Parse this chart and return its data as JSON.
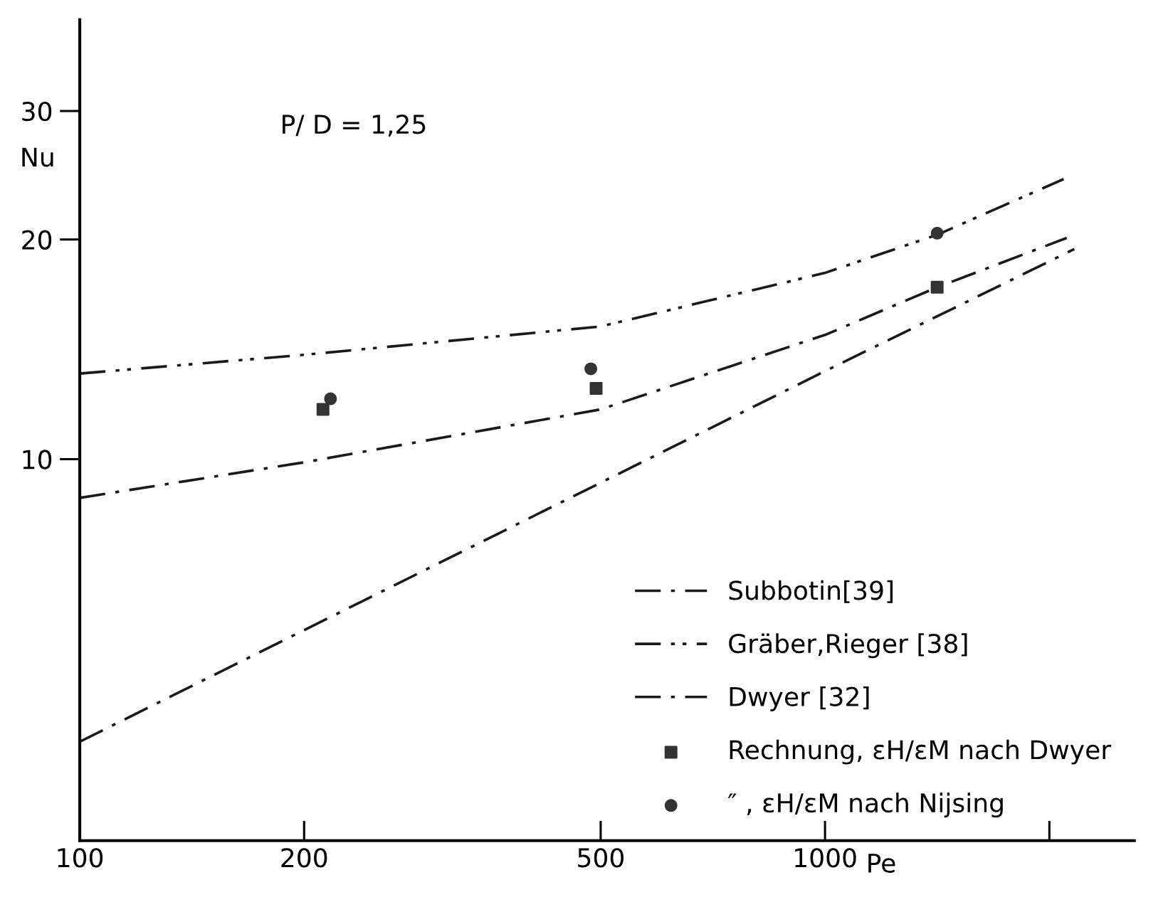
{
  "chart_data": {
    "type": "line",
    "xlabel": "Pe",
    "ylabel": "Nu",
    "log": "xy",
    "xlim": [
      100,
      2600
    ],
    "ylim": [
      3,
      40
    ],
    "xticks": [
      100,
      200,
      500,
      1000,
      {
        "value": 2000,
        "label": null
      }
    ],
    "yticks": [
      10,
      20,
      30
    ],
    "grid": false,
    "legend": "bottom right",
    "annotations": [
      "P/ D = 1,25"
    ],
    "series": [
      {
        "name": "Subbotin[39]",
        "line_style": "dashdot",
        "color": "#1a1a1a",
        "x": [
          100,
          200,
          500,
          1000,
          1414,
          2110
        ],
        "values": [
          8.85,
          9.9,
          11.7,
          14.8,
          17.2,
          20.1
        ]
      },
      {
        "name": "Gräber,Rieger [38]",
        "line_style": "dashdotdot",
        "color": "#1a1a1a",
        "x": [
          100,
          200,
          500,
          700,
          1000,
          1414,
          2090
        ],
        "values": [
          13.1,
          13.9,
          15.2,
          16.5,
          18.0,
          20.3,
          24.2
        ]
      },
      {
        "name": "Dwyer [32]",
        "line_style": "dashdot",
        "color": "#1a1a1a",
        "x": [
          100,
          1000,
          2160
        ],
        "values": [
          4.1,
          13.2,
          19.4
        ]
      },
      {
        "name": "Rechnung, εH/εM nach Dwyer",
        "type": "scatter",
        "marker": "square",
        "color": "#333333",
        "x": [
          212,
          493,
          1414
        ],
        "values": [
          11.7,
          12.5,
          17.2
        ]
      },
      {
        "name": "″ , εH/εM nach Nijsing",
        "type": "scatter",
        "marker": "circle",
        "color": "#333333",
        "x": [
          217,
          485,
          1414
        ],
        "values": [
          12.1,
          13.3,
          20.4
        ]
      }
    ]
  }
}
